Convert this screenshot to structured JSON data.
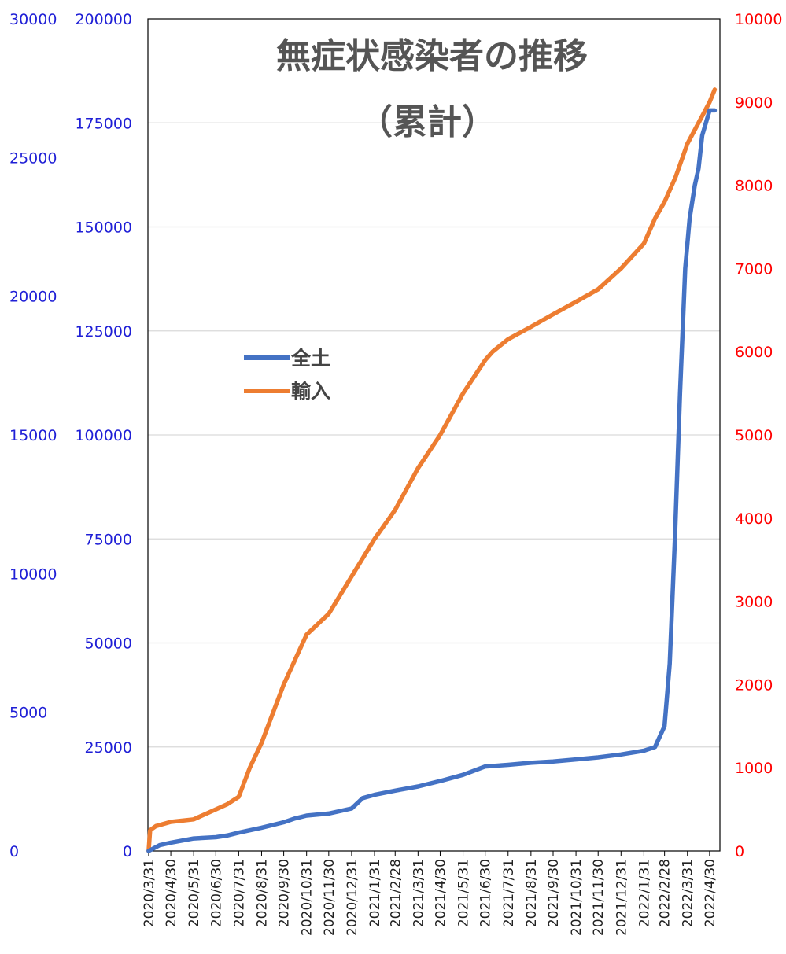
{
  "chart_data": {
    "type": "line",
    "title": "無症状感染者の推移",
    "subtitle": "（累計）",
    "x": [
      "2020/3/31",
      "2020/4/30",
      "2020/5/31",
      "2020/6/30",
      "2020/7/31",
      "2020/8/31",
      "2020/9/30",
      "2020/10/31",
      "2020/11/30",
      "2020/12/31",
      "2021/1/31",
      "2021/2/28",
      "2021/3/31",
      "2021/4/30",
      "2021/5/31",
      "2021/6/30",
      "2021/7/31",
      "2021/8/31",
      "2021/9/30",
      "2021/10/31",
      "2021/11/30",
      "2021/12/31",
      "2022/1/31",
      "2022/2/28",
      "2022/3/31",
      "2022/4/30"
    ],
    "left_axis_outer": {
      "ticks": [
        "0",
        "5000",
        "10000",
        "15000",
        "20000",
        "25000",
        "30000"
      ],
      "color": "#1f1fd6"
    },
    "left_axis_inner": {
      "ticks": [
        "0",
        "25000",
        "50000",
        "75000",
        "100000",
        "125000",
        "150000",
        "175000",
        "200000"
      ],
      "ylim": [
        0,
        200000
      ],
      "color": "#1f1fd6"
    },
    "right_axis": {
      "ticks": [
        "0",
        "1000",
        "2000",
        "3000",
        "4000",
        "5000",
        "6000",
        "7000",
        "8000",
        "9000",
        "10000"
      ],
      "ylim": [
        0,
        10000
      ],
      "color": "#ff0000"
    },
    "grid": true,
    "legend_position": "middle-left",
    "series": [
      {
        "name": "全土",
        "axis": "left",
        "color": "#4472c4",
        "points": [
          [
            "2020/3/31",
            0
          ],
          [
            "2020/4/15",
            1400
          ],
          [
            "2020/4/30",
            2000
          ],
          [
            "2020/5/31",
            3000
          ],
          [
            "2020/6/30",
            3300
          ],
          [
            "2020/7/15",
            3700
          ],
          [
            "2020/7/31",
            4400
          ],
          [
            "2020/8/31",
            5600
          ],
          [
            "2020/9/30",
            6900
          ],
          [
            "2020/10/15",
            7800
          ],
          [
            "2020/10/31",
            8500
          ],
          [
            "2020/11/30",
            9000
          ],
          [
            "2020/12/31",
            10200
          ],
          [
            "2021/1/15",
            12700
          ],
          [
            "2021/1/31",
            13500
          ],
          [
            "2021/2/28",
            14500
          ],
          [
            "2021/3/31",
            15500
          ],
          [
            "2021/4/30",
            16800
          ],
          [
            "2021/5/31",
            18300
          ],
          [
            "2021/6/30",
            20300
          ],
          [
            "2021/7/31",
            20700
          ],
          [
            "2021/8/31",
            21200
          ],
          [
            "2021/9/30",
            21500
          ],
          [
            "2021/10/31",
            22000
          ],
          [
            "2021/11/30",
            22500
          ],
          [
            "2021/12/31",
            23200
          ],
          [
            "2022/1/31",
            24100
          ],
          [
            "2022/2/15",
            25000
          ],
          [
            "2022/2/28",
            30000
          ],
          [
            "2022/3/7",
            45000
          ],
          [
            "2022/3/14",
            75000
          ],
          [
            "2022/3/21",
            110000
          ],
          [
            "2022/3/28",
            140000
          ],
          [
            "2022/4/3",
            152000
          ],
          [
            "2022/4/10",
            160000
          ],
          [
            "2022/4/15",
            164000
          ],
          [
            "2022/4/20",
            172000
          ],
          [
            "2022/4/30",
            178000
          ],
          [
            "2022/5/7",
            178000
          ]
        ]
      },
      {
        "name": "輸入",
        "axis": "right",
        "color": "#ed7d31",
        "points": [
          [
            "2020/3/31",
            0
          ],
          [
            "2020/4/2",
            250
          ],
          [
            "2020/4/10",
            300
          ],
          [
            "2020/4/30",
            350
          ],
          [
            "2020/5/31",
            380
          ],
          [
            "2020/6/30",
            500
          ],
          [
            "2020/7/15",
            560
          ],
          [
            "2020/7/31",
            650
          ],
          [
            "2020/8/15",
            1000
          ],
          [
            "2020/8/31",
            1300
          ],
          [
            "2020/9/30",
            2000
          ],
          [
            "2020/10/31",
            2600
          ],
          [
            "2020/11/30",
            2850
          ],
          [
            "2020/12/31",
            3300
          ],
          [
            "2021/1/31",
            3750
          ],
          [
            "2021/2/28",
            4100
          ],
          [
            "2021/3/31",
            4600
          ],
          [
            "2021/4/30",
            5000
          ],
          [
            "2021/5/31",
            5500
          ],
          [
            "2021/6/30",
            5900
          ],
          [
            "2021/7/10",
            6000
          ],
          [
            "2021/7/31",
            6150
          ],
          [
            "2021/8/31",
            6300
          ],
          [
            "2021/9/30",
            6450
          ],
          [
            "2021/10/31",
            6600
          ],
          [
            "2021/11/30",
            6750
          ],
          [
            "2021/12/31",
            7000
          ],
          [
            "2022/1/31",
            7300
          ],
          [
            "2022/2/15",
            7600
          ],
          [
            "2022/2/28",
            7800
          ],
          [
            "2022/3/15",
            8100
          ],
          [
            "2022/3/31",
            8500
          ],
          [
            "2022/4/15",
            8750
          ],
          [
            "2022/4/30",
            9000
          ],
          [
            "2022/5/7",
            9150
          ]
        ]
      }
    ]
  }
}
